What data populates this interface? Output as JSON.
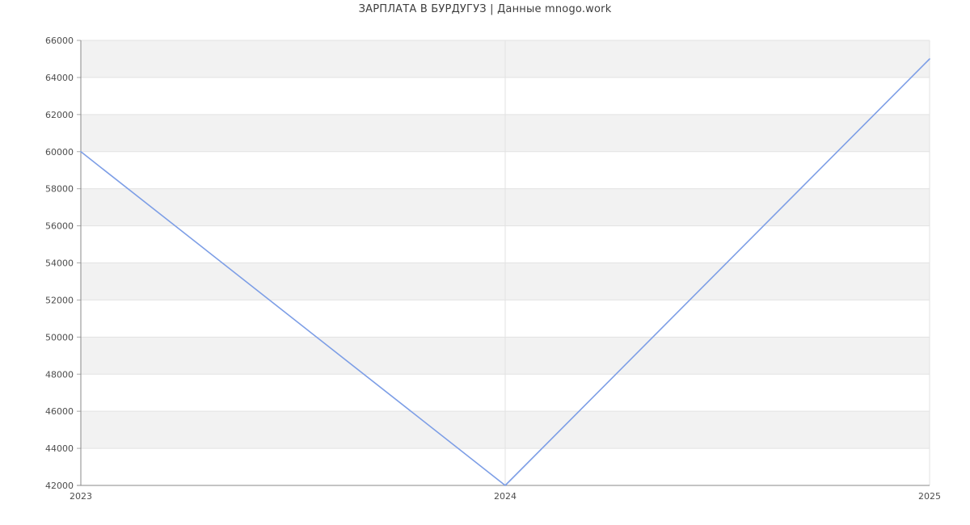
{
  "chart_data": {
    "type": "line",
    "title": "ЗАРПЛАТА В БУРДУГУЗ | Данные mnogo.work",
    "categories": [
      "2023",
      "2024",
      "2025"
    ],
    "series": [
      {
        "values": [
          60000,
          42000,
          65000
        ]
      }
    ],
    "xlabel": "",
    "ylabel": "",
    "ylim": [
      42000,
      66000
    ],
    "ytick_step": 2000,
    "ytick_labels": [
      "42000",
      "44000",
      "46000",
      "48000",
      "50000",
      "52000",
      "54000",
      "56000",
      "58000",
      "60000",
      "62000",
      "64000",
      "66000"
    ],
    "grid": true,
    "legend": false,
    "band_fill_alternating": true,
    "colors": {
      "line": "#7d9ee6",
      "band": "#f2f2f2",
      "band_alt": "#ffffff",
      "grid": "#e2e2e2",
      "axis": "#888888",
      "tick": "#aaaaaa",
      "label": "#4d4d4d",
      "title": "#3d3d3d",
      "background": "#ffffff"
    }
  }
}
